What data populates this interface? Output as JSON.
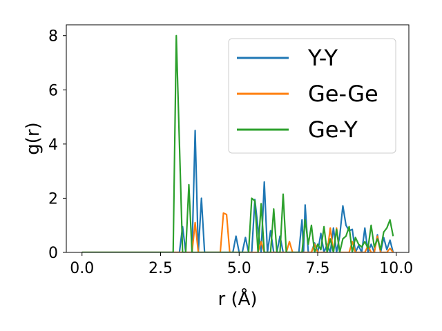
{
  "chart_data": {
    "type": "line",
    "title": "",
    "xlabel": "r (Å)",
    "ylabel": "g(r)",
    "xlim": [
      -0.5,
      10.4
    ],
    "ylim": [
      0,
      8.4
    ],
    "xticks": [
      0.0,
      2.5,
      5.0,
      7.5,
      10.0
    ],
    "xtick_labels": [
      "0.0",
      "2.5",
      "5.0",
      "7.5",
      "10.0"
    ],
    "yticks": [
      0,
      2,
      4,
      6,
      8
    ],
    "ytick_labels": [
      "0",
      "2",
      "4",
      "6",
      "8"
    ],
    "grid": false,
    "legend": "upper right",
    "series": [
      {
        "name": "Y-Y",
        "color": "#1f77b4",
        "points": [
          [
            0,
            0
          ],
          [
            3.0,
            0
          ],
          [
            3.1,
            0
          ],
          [
            3.2,
            0.95
          ],
          [
            3.3,
            0
          ],
          [
            3.5,
            0
          ],
          [
            3.6,
            4.5
          ],
          [
            3.7,
            0
          ],
          [
            3.8,
            2.0
          ],
          [
            3.9,
            0
          ],
          [
            4.8,
            0
          ],
          [
            4.9,
            0.6
          ],
          [
            5.0,
            0
          ],
          [
            5.1,
            0
          ],
          [
            5.2,
            0.55
          ],
          [
            5.3,
            0
          ],
          [
            5.4,
            0
          ],
          [
            5.5,
            1.95
          ],
          [
            5.6,
            0.9
          ],
          [
            5.7,
            0
          ],
          [
            5.8,
            2.6
          ],
          [
            5.9,
            0
          ],
          [
            6.0,
            0.8
          ],
          [
            6.1,
            0
          ],
          [
            6.2,
            0
          ],
          [
            6.3,
            0.6
          ],
          [
            6.4,
            0
          ],
          [
            6.9,
            0
          ],
          [
            7.0,
            1.2
          ],
          [
            7.05,
            0
          ],
          [
            7.1,
            1.75
          ],
          [
            7.2,
            0
          ],
          [
            7.3,
            0
          ],
          [
            7.4,
            0.35
          ],
          [
            7.5,
            0
          ],
          [
            7.6,
            0.7
          ],
          [
            7.7,
            0
          ],
          [
            7.8,
            0.3
          ],
          [
            7.9,
            0
          ],
          [
            8.0,
            0.9
          ],
          [
            8.1,
            0
          ],
          [
            8.2,
            0.6
          ],
          [
            8.3,
            1.72
          ],
          [
            8.4,
            1.0
          ],
          [
            8.5,
            0.8
          ],
          [
            8.6,
            0.85
          ],
          [
            8.7,
            0
          ],
          [
            8.8,
            0.25
          ],
          [
            8.9,
            0
          ],
          [
            9.0,
            0.9
          ],
          [
            9.1,
            0
          ],
          [
            9.2,
            0.3
          ],
          [
            9.3,
            0
          ],
          [
            9.4,
            0.65
          ],
          [
            9.5,
            0
          ],
          [
            9.6,
            0.55
          ],
          [
            9.7,
            0.1
          ],
          [
            9.8,
            0.45
          ],
          [
            9.9,
            0
          ]
        ]
      },
      {
        "name": "Ge-Ge",
        "color": "#ff7f0e",
        "points": [
          [
            0,
            0
          ],
          [
            3.4,
            0
          ],
          [
            3.5,
            0
          ],
          [
            3.6,
            1.1
          ],
          [
            3.7,
            0
          ],
          [
            4.4,
            0
          ],
          [
            4.5,
            1.45
          ],
          [
            4.6,
            1.4
          ],
          [
            4.7,
            0
          ],
          [
            5.6,
            0
          ],
          [
            5.7,
            0.4
          ],
          [
            5.8,
            0
          ],
          [
            6.5,
            0
          ],
          [
            6.6,
            0.4
          ],
          [
            6.7,
            0
          ],
          [
            7.3,
            0
          ],
          [
            7.4,
            0.3
          ],
          [
            7.5,
            0
          ],
          [
            7.8,
            0
          ],
          [
            7.9,
            0.9
          ],
          [
            8.0,
            0
          ],
          [
            8.1,
            0.9
          ],
          [
            8.2,
            0
          ],
          [
            8.5,
            0
          ],
          [
            8.6,
            0.4
          ],
          [
            8.7,
            0
          ],
          [
            9.0,
            0
          ],
          [
            9.1,
            0.25
          ],
          [
            9.2,
            0
          ],
          [
            9.3,
            0
          ],
          [
            9.4,
            0.6
          ],
          [
            9.5,
            0
          ],
          [
            9.7,
            0
          ],
          [
            9.8,
            0.15
          ],
          [
            9.9,
            0
          ]
        ]
      },
      {
        "name": "Ge-Y",
        "color": "#2ca02c",
        "points": [
          [
            0,
            0
          ],
          [
            2.8,
            0
          ],
          [
            2.9,
            0
          ],
          [
            3.0,
            8.0
          ],
          [
            3.1,
            4.0
          ],
          [
            3.2,
            0
          ],
          [
            3.3,
            0
          ],
          [
            3.4,
            2.5
          ],
          [
            3.5,
            0
          ],
          [
            3.6,
            0
          ],
          [
            5.3,
            0
          ],
          [
            5.4,
            2.0
          ],
          [
            5.5,
            1.9
          ],
          [
            5.6,
            0
          ],
          [
            5.7,
            1.8
          ],
          [
            5.8,
            0
          ],
          [
            5.9,
            0
          ],
          [
            6.0,
            0
          ],
          [
            6.1,
            1.6
          ],
          [
            6.2,
            0
          ],
          [
            6.3,
            0
          ],
          [
            6.4,
            2.15
          ],
          [
            6.5,
            0
          ],
          [
            6.6,
            0
          ],
          [
            7.0,
            0
          ],
          [
            7.1,
            1.2
          ],
          [
            7.2,
            0.3
          ],
          [
            7.3,
            1.0
          ],
          [
            7.4,
            0
          ],
          [
            7.5,
            0.3
          ],
          [
            7.6,
            0.1
          ],
          [
            7.7,
            0.95
          ],
          [
            7.8,
            0
          ],
          [
            7.9,
            0.5
          ],
          [
            8.0,
            0
          ],
          [
            8.1,
            0.85
          ],
          [
            8.2,
            0
          ],
          [
            8.3,
            0.5
          ],
          [
            8.4,
            0.6
          ],
          [
            8.5,
            0.95
          ],
          [
            8.6,
            0
          ],
          [
            8.7,
            0.55
          ],
          [
            8.8,
            0.3
          ],
          [
            8.9,
            0.2
          ],
          [
            9.0,
            0.4
          ],
          [
            9.1,
            0.15
          ],
          [
            9.2,
            1.0
          ],
          [
            9.3,
            0.2
          ],
          [
            9.4,
            0.5
          ],
          [
            9.5,
            0.1
          ],
          [
            9.6,
            0.75
          ],
          [
            9.7,
            0.9
          ],
          [
            9.8,
            1.2
          ],
          [
            9.9,
            0.6
          ]
        ]
      }
    ]
  }
}
